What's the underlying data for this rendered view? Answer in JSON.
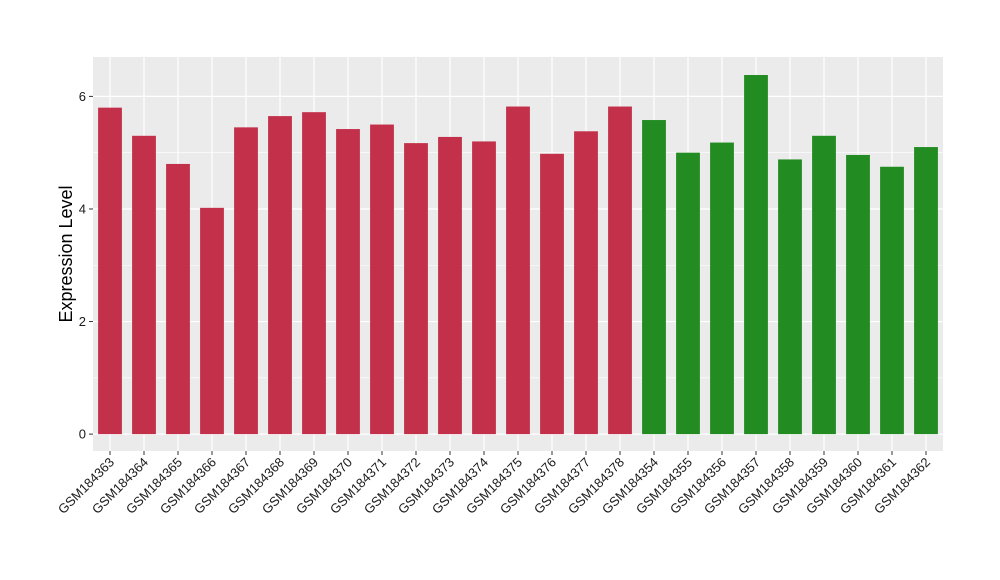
{
  "chart_data": {
    "type": "bar",
    "title": "",
    "xlabel": "",
    "ylabel": "Expression Level",
    "ylim": [
      -0.3,
      6.7
    ],
    "yticks": [
      0,
      2,
      4,
      6
    ],
    "grid": true,
    "legend": "none",
    "categories": [
      "GSM184363",
      "GSM184364",
      "GSM184365",
      "GSM184366",
      "GSM184367",
      "GSM184368",
      "GSM184369",
      "GSM184370",
      "GSM184371",
      "GSM184372",
      "GSM184373",
      "GSM184374",
      "GSM184375",
      "GSM184376",
      "GSM184377",
      "GSM184378",
      "GSM184354",
      "GSM184355",
      "GSM184356",
      "GSM184357",
      "GSM184358",
      "GSM184359",
      "GSM184360",
      "GSM184361",
      "GSM184362"
    ],
    "values": [
      5.8,
      5.3,
      4.8,
      4.02,
      5.45,
      5.65,
      5.72,
      5.42,
      5.5,
      5.17,
      5.28,
      5.2,
      5.82,
      4.98,
      5.38,
      5.82,
      5.58,
      5.0,
      5.18,
      6.38,
      4.88,
      5.3,
      4.96,
      4.75,
      5.1
    ],
    "groups": [
      "red",
      "red",
      "red",
      "red",
      "red",
      "red",
      "red",
      "red",
      "red",
      "red",
      "red",
      "red",
      "red",
      "red",
      "red",
      "red",
      "green",
      "green",
      "green",
      "green",
      "green",
      "green",
      "green",
      "green",
      "green"
    ],
    "colors": {
      "red": "#C3304A",
      "green": "#228B22",
      "panel": "#EBEBEB",
      "grid": "#FFFFFF"
    }
  }
}
